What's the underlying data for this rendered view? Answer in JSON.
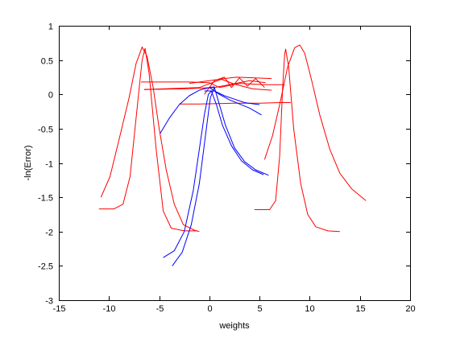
{
  "chart_data": {
    "type": "line",
    "title": "",
    "xlabel": "weights",
    "ylabel": "-ln(Error)",
    "xlim": [
      -15,
      20
    ],
    "ylim": [
      -3,
      1
    ],
    "xticks": [
      -15,
      -10,
      -5,
      0,
      5,
      10,
      15,
      20
    ],
    "yticks": [
      -3,
      -2.5,
      -2,
      -1.5,
      -1,
      -0.5,
      0,
      0.5,
      1
    ],
    "xtick_labels": [
      "-15",
      "-10",
      "-5",
      "0",
      "5",
      "10",
      "15",
      "20"
    ],
    "ytick_labels": [
      "-3",
      "-2.5",
      "-2",
      "-1.5",
      "-1",
      "-0.5",
      "0",
      "0.5",
      "1"
    ],
    "grid": false,
    "legend": "none",
    "colors": {
      "red": "#ff0000",
      "blue": "#0000ff"
    },
    "series": [
      {
        "color": "red",
        "points": [
          [
            -10.8,
            -1.5
          ],
          [
            -9.9,
            -1.2
          ],
          [
            -8.9,
            -0.6
          ],
          [
            -8.0,
            -0.05
          ],
          [
            -7.3,
            0.45
          ],
          [
            -6.7,
            0.69
          ],
          [
            -6.2,
            0.55
          ],
          [
            -5.6,
            0.1
          ],
          [
            -5.0,
            -0.5
          ],
          [
            -4.3,
            -1.1
          ],
          [
            -3.5,
            -1.6
          ],
          [
            -2.6,
            -1.9
          ],
          [
            -1.5,
            -1.98
          ],
          [
            -1.0,
            -2.0
          ]
        ]
      },
      {
        "color": "red",
        "points": [
          [
            -11.0,
            -1.67
          ],
          [
            -9.5,
            -1.67
          ],
          [
            -8.6,
            -1.6
          ],
          [
            -7.9,
            -1.2
          ],
          [
            -7.2,
            -0.2
          ],
          [
            -6.7,
            0.5
          ],
          [
            -6.4,
            0.67
          ],
          [
            -6.0,
            0.3
          ],
          [
            -5.3,
            -0.8
          ],
          [
            -4.6,
            -1.7
          ],
          [
            -3.8,
            -1.95
          ],
          [
            -2.5,
            -1.99
          ],
          [
            -1.2,
            -1.99
          ]
        ]
      },
      {
        "color": "red",
        "points": [
          [
            -6.5,
            0.07
          ],
          [
            -2.5,
            0.08
          ],
          [
            0.5,
            0.1
          ],
          [
            2.3,
            0.15
          ],
          [
            4.0,
            0.2
          ],
          [
            5.6,
            0.17
          ]
        ]
      },
      {
        "color": "red",
        "points": [
          [
            -6.8,
            0.18
          ],
          [
            -2.0,
            0.18
          ],
          [
            0.0,
            0.17
          ],
          [
            1.0,
            0.1
          ],
          [
            3.0,
            0.16
          ],
          [
            5.5,
            0.14
          ],
          [
            7.5,
            0.14
          ]
        ]
      },
      {
        "color": "red",
        "points": [
          [
            -6.5,
            0.07
          ],
          [
            -1.0,
            0.1
          ],
          [
            1.2,
            0.22
          ],
          [
            2.5,
            0.15
          ],
          [
            4.3,
            0.08
          ],
          [
            6.2,
            0.06
          ]
        ]
      },
      {
        "color": "red",
        "points": [
          [
            -3.0,
            -0.14
          ],
          [
            -1.0,
            -0.14
          ],
          [
            2.5,
            -0.13
          ],
          [
            5.0,
            -0.13
          ],
          [
            7.0,
            -0.12
          ],
          [
            8.1,
            -0.12
          ]
        ]
      },
      {
        "color": "red",
        "points": [
          [
            -2.0,
            0.16
          ],
          [
            0.0,
            0.2
          ],
          [
            1.5,
            0.23
          ],
          [
            2.7,
            0.25
          ],
          [
            4.5,
            0.24
          ],
          [
            6.2,
            0.23
          ]
        ]
      },
      {
        "color": "red",
        "points": [
          [
            -0.5,
            0.0
          ],
          [
            0.5,
            0.2
          ],
          [
            1.5,
            0.25
          ],
          [
            2.2,
            0.1
          ],
          [
            3.0,
            0.24
          ],
          [
            3.8,
            0.12
          ],
          [
            4.6,
            0.23
          ],
          [
            5.5,
            0.1
          ]
        ]
      },
      {
        "color": "red",
        "points": [
          [
            4.5,
            -1.68
          ],
          [
            6.0,
            -1.68
          ],
          [
            6.6,
            -1.55
          ],
          [
            7.0,
            -0.9
          ],
          [
            7.3,
            0.1
          ],
          [
            7.5,
            0.58
          ],
          [
            7.6,
            0.66
          ],
          [
            7.9,
            0.4
          ],
          [
            8.4,
            -0.5
          ],
          [
            9.1,
            -1.3
          ],
          [
            9.8,
            -1.75
          ],
          [
            10.6,
            -1.93
          ],
          [
            11.8,
            -1.99
          ],
          [
            13.0,
            -2.0
          ]
        ]
      },
      {
        "color": "red",
        "points": [
          [
            5.5,
            -0.95
          ],
          [
            6.3,
            -0.6
          ],
          [
            7.0,
            -0.15
          ],
          [
            7.8,
            0.4
          ],
          [
            8.5,
            0.68
          ],
          [
            9.0,
            0.72
          ],
          [
            9.5,
            0.6
          ],
          [
            10.2,
            0.2
          ],
          [
            11.0,
            -0.3
          ],
          [
            12.0,
            -0.8
          ],
          [
            13.0,
            -1.15
          ],
          [
            14.2,
            -1.38
          ],
          [
            15.6,
            -1.55
          ]
        ]
      },
      {
        "color": "blue",
        "points": [
          [
            -4.9,
            -0.57
          ],
          [
            -4.0,
            -0.35
          ],
          [
            -3.0,
            -0.15
          ],
          [
            -2.0,
            -0.02
          ],
          [
            -1.0,
            0.06
          ],
          [
            0.0,
            0.1
          ],
          [
            0.5,
            0.11
          ]
        ]
      },
      {
        "color": "blue",
        "points": [
          [
            -0.5,
            0.05
          ],
          [
            0.5,
            0.05
          ],
          [
            1.5,
            -0.02
          ],
          [
            2.5,
            -0.07
          ],
          [
            3.5,
            -0.12
          ],
          [
            4.5,
            -0.14
          ],
          [
            5.0,
            -0.15
          ]
        ]
      },
      {
        "color": "blue",
        "points": [
          [
            0.0,
            0.1
          ],
          [
            1.0,
            0.0
          ],
          [
            2.0,
            -0.08
          ],
          [
            3.0,
            -0.14
          ],
          [
            4.0,
            -0.2
          ],
          [
            5.2,
            -0.3
          ]
        ]
      },
      {
        "color": "blue",
        "points": [
          [
            -4.6,
            -2.38
          ],
          [
            -3.5,
            -2.28
          ],
          [
            -2.5,
            -2.0
          ],
          [
            -1.6,
            -1.4
          ],
          [
            -1.0,
            -0.8
          ],
          [
            -0.5,
            -0.3
          ],
          [
            -0.1,
            0.0
          ],
          [
            0.2,
            0.05
          ],
          [
            0.7,
            -0.15
          ],
          [
            1.3,
            -0.45
          ],
          [
            2.2,
            -0.75
          ],
          [
            3.2,
            -0.97
          ],
          [
            4.3,
            -1.1
          ],
          [
            5.4,
            -1.17
          ]
        ]
      },
      {
        "color": "blue",
        "points": [
          [
            -3.7,
            -2.5
          ],
          [
            -2.7,
            -2.3
          ],
          [
            -1.8,
            -1.9
          ],
          [
            -1.0,
            -1.3
          ],
          [
            -0.3,
            -0.5
          ],
          [
            0.1,
            -0.05
          ],
          [
            0.5,
            0.1
          ],
          [
            0.9,
            -0.1
          ],
          [
            1.6,
            -0.45
          ],
          [
            2.5,
            -0.78
          ],
          [
            3.5,
            -0.98
          ],
          [
            4.6,
            -1.1
          ],
          [
            5.9,
            -1.18
          ]
        ]
      }
    ]
  }
}
